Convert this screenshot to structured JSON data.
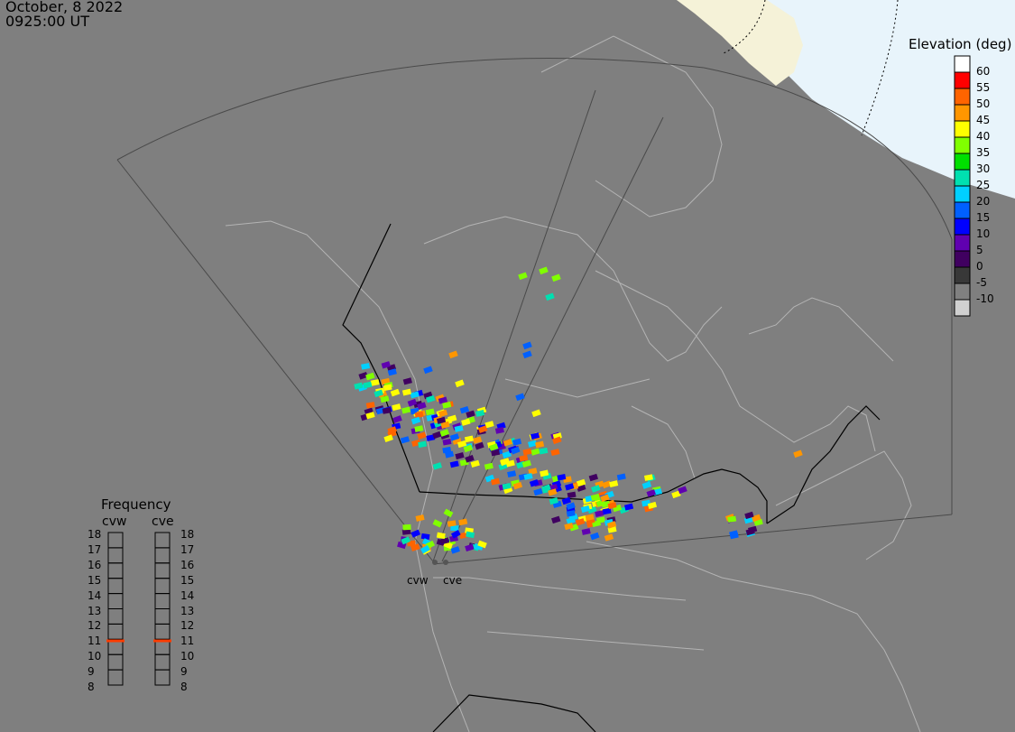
{
  "header": {
    "date": "October, 8 2022",
    "time": "0925:00 UT"
  },
  "legend": {
    "title": "Elevation (deg)",
    "levels": [
      {
        "label": "60",
        "color": "#ff0000"
      },
      {
        "label": "55",
        "color": "#ff6400"
      },
      {
        "label": "50",
        "color": "#ff9600"
      },
      {
        "label": "45",
        "color": "#ffff00"
      },
      {
        "label": "40",
        "color": "#80ff00"
      },
      {
        "label": "35",
        "color": "#00e000"
      },
      {
        "label": "30",
        "color": "#00e0b0"
      },
      {
        "label": "25",
        "color": "#00d0ff"
      },
      {
        "label": "20",
        "color": "#0060ff"
      },
      {
        "label": "15",
        "color": "#0000ff"
      },
      {
        "label": "10",
        "color": "#6000b0"
      },
      {
        "label": "5",
        "color": "#400060"
      },
      {
        "label": "0",
        "color": "#383838"
      },
      {
        "label": "-5",
        "color": "#808080"
      },
      {
        "label": "-10",
        "color": "#d0d0d0"
      }
    ],
    "top_color": "#ffffff"
  },
  "frequency": {
    "title": "Frequency",
    "radars": [
      "cvw",
      "cve"
    ],
    "ticks": [
      "18",
      "17",
      "16",
      "15",
      "14",
      "13",
      "12",
      "11",
      "10",
      "9",
      "8"
    ],
    "current_mhz": [
      10.9,
      10.9
    ],
    "marker_color": "#ff3c00"
  },
  "radar_sites": [
    {
      "code": "cvw"
    },
    {
      "code": "cve"
    }
  ],
  "colors": {
    "background": "#7f7f7f",
    "coastline": "#b4b4b4",
    "border": "#000000",
    "fov": "#4a4a4a",
    "daylight": "#e8f4fb",
    "land_day": "#f5f2d8"
  }
}
